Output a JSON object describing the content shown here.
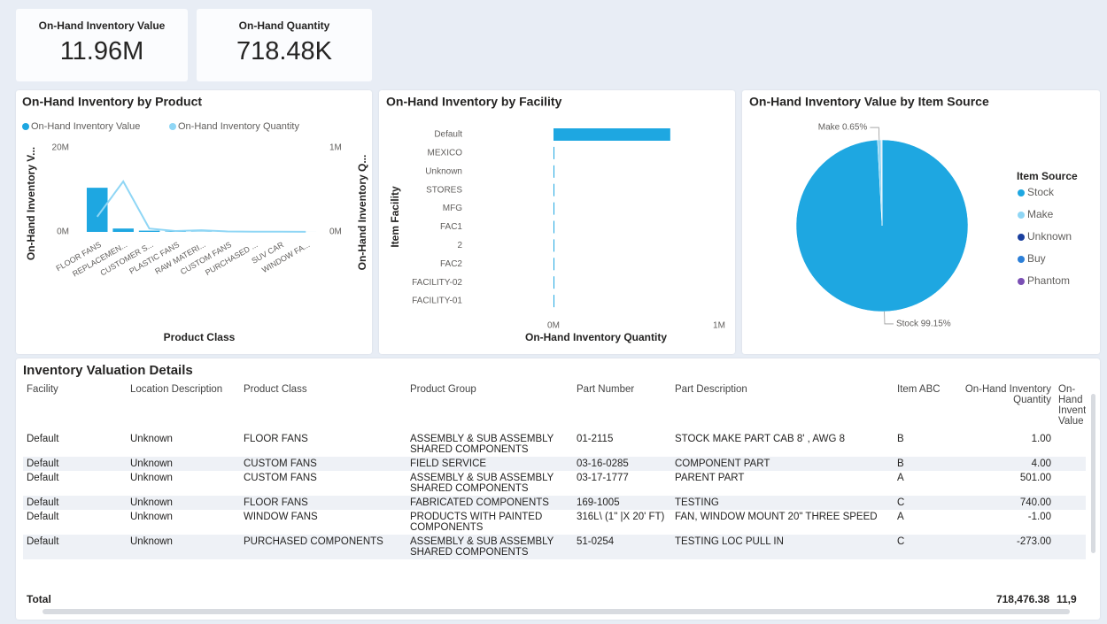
{
  "cards": [
    {
      "label": "On-Hand Inventory Value",
      "value": "11.96M"
    },
    {
      "label": "On-Hand Quantity",
      "value": "718.48K"
    }
  ],
  "chart_data": [
    {
      "type": "combo",
      "title": "On-Hand Inventory by Product",
      "xlabel": "Product Class",
      "ylabel": "On-Hand Inventory V...",
      "y2label": "On-Hand Inventory Q...",
      "categories": [
        "FLOOR FANS",
        "REPLACEMEN...",
        "CUSTOMER S...",
        "PLASTIC FANS",
        "RAW MATERI...",
        "CUSTOM FANS",
        "PURCHASED ...",
        "SUV CAR",
        "WINDOW FA..."
      ],
      "series": [
        {
          "name": "On-Hand Inventory Value",
          "color": "#1ea7e1",
          "type": "bar",
          "values": [
            10500000,
            800000,
            300000,
            100000,
            50000,
            30000,
            20000,
            10000,
            5000
          ]
        },
        {
          "name": "On-Hand Inventory Quantity",
          "color": "#8fd6f5",
          "type": "line",
          "axis": "y2",
          "values": [
            180000,
            600000,
            40000,
            10000,
            20000,
            5000,
            3000,
            2000,
            1000
          ]
        }
      ],
      "ylim": [
        0,
        20000000
      ],
      "yticks": [
        {
          "value": 0,
          "label": "0M"
        },
        {
          "value": 20000000,
          "label": "20M"
        }
      ],
      "y2lim": [
        0,
        1000000
      ],
      "y2ticks": [
        {
          "value": 0,
          "label": "0M"
        },
        {
          "value": 1000000,
          "label": "1M"
        }
      ]
    },
    {
      "type": "hbar",
      "title": "On-Hand Inventory by Facility",
      "xlabel": "On-Hand Inventory Quantity",
      "ylabel": "Item Facility",
      "categories": [
        "Default",
        "MEXICO",
        "Unknown",
        "STORES",
        "MFG",
        "FAC1",
        "2",
        "FAC2",
        "FACILITY-02",
        "FACILITY-01"
      ],
      "values": [
        705000,
        4000,
        3000,
        2500,
        2000,
        1500,
        1000,
        800,
        500,
        300
      ],
      "color": "#1ea7e1",
      "xlim": [
        0,
        1000000
      ],
      "xticks": [
        {
          "value": 0,
          "label": "0M"
        },
        {
          "value": 1000000,
          "label": "1M"
        }
      ]
    },
    {
      "type": "pie",
      "title": "On-Hand Inventory Value by Item Source",
      "legend_title": "Item Source",
      "categories": [
        "Stock",
        "Make",
        "Unknown",
        "Buy",
        "Phantom"
      ],
      "values": [
        99.15,
        0.65,
        0.1,
        0.08,
        0.02
      ],
      "value_labels": [
        "Stock 99.15%",
        "Make 0.65%",
        null,
        null,
        null
      ],
      "colors": [
        "#1ea7e1",
        "#8fd6f5",
        "#1a3f9e",
        "#2c7fd8",
        "#7a4fb4"
      ]
    }
  ],
  "table": {
    "title": "Inventory Valuation Details",
    "columns": [
      "Facility",
      "Location Description",
      "Product Class",
      "Product Group",
      "Part Number",
      "Part Description",
      "Item ABC",
      "On-Hand Inventory Quantity",
      "On-Hand Inventory Value"
    ],
    "rows": [
      [
        "Default",
        "Unknown",
        "FLOOR FANS",
        "ASSEMBLY & SUB ASSEMBLY SHARED COMPONENTS",
        "01-2115",
        "STOCK MAKE PART CAB 8' , AWG 8",
        "B",
        "1.00"
      ],
      [
        "Default",
        "Unknown",
        "CUSTOM FANS",
        "FIELD SERVICE",
        "03-16-0285",
        "COMPONENT PART",
        "B",
        "4.00"
      ],
      [
        "Default",
        "Unknown",
        "CUSTOM FANS",
        "ASSEMBLY & SUB ASSEMBLY SHARED COMPONENTS",
        "03-17-1777",
        "PARENT PART",
        "A",
        "501.00"
      ],
      [
        "Default",
        "Unknown",
        "FLOOR FANS",
        "FABRICATED COMPONENTS",
        "169-1005",
        "TESTING",
        "C",
        "740.00"
      ],
      [
        "Default",
        "Unknown",
        "WINDOW FANS",
        "PRODUCTS WITH PAINTED COMPONENTS",
        "316L\\ (1\" |X 20' FT)",
        "FAN, WINDOW MOUNT 20\" THREE SPEED",
        "A",
        "-1.00"
      ],
      [
        "Default",
        "Unknown",
        "PURCHASED COMPONENTS",
        "ASSEMBLY & SUB ASSEMBLY SHARED COMPONENTS",
        "51-0254",
        "TESTING LOC PULL IN",
        "C",
        "-273.00"
      ]
    ],
    "total": {
      "label": "Total",
      "quantity": "718,476.38",
      "value": "11,9"
    }
  }
}
